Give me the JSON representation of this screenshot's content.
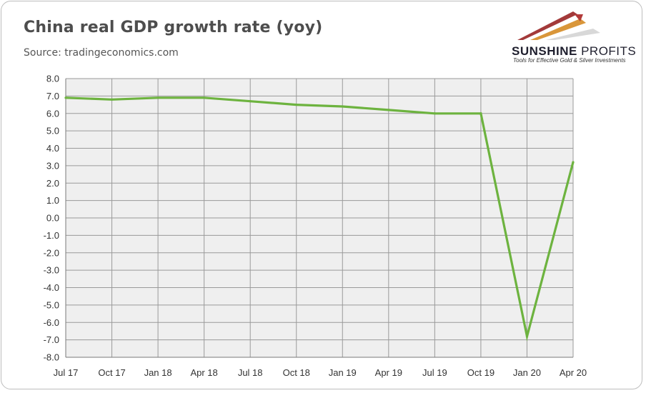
{
  "title": "China real GDP growth rate (yoy)",
  "source": "Source: tradingeconomics.com",
  "logo": {
    "name_main": "SUNSHINE",
    "name_rest": " PROFITS",
    "tagline": "Tools for Effective Gold & Silver Investments"
  },
  "colors": {
    "line": "#6db33f",
    "plot_bg": "#efefef",
    "grid": "#9a9a9a"
  },
  "chart_data": {
    "type": "line",
    "title": "China real GDP growth rate (yoy)",
    "xlabel": "",
    "ylabel": "",
    "categories": [
      "Jul 17",
      "Oct 17",
      "Jan 18",
      "Apr 18",
      "Jul 18",
      "Oct 18",
      "Jan 19",
      "Apr 19",
      "Jul 19",
      "Oct 19",
      "Jan 20",
      "Apr 20"
    ],
    "series": [
      {
        "values": [
          6.9,
          6.8,
          6.9,
          6.9,
          6.7,
          6.5,
          6.4,
          6.2,
          6.0,
          6.0,
          -6.8,
          3.2
        ]
      }
    ],
    "ylim": [
      -8.0,
      8.0
    ],
    "yticks": [
      "8.0",
      "7.0",
      "6.0",
      "5.0",
      "4.0",
      "3.0",
      "2.0",
      "1.0",
      "0.0",
      "-1.0",
      "-2.0",
      "-3.0",
      "-4.0",
      "-5.0",
      "-6.0",
      "-7.0",
      "-8.0"
    ],
    "grid": true,
    "legend": "none"
  }
}
